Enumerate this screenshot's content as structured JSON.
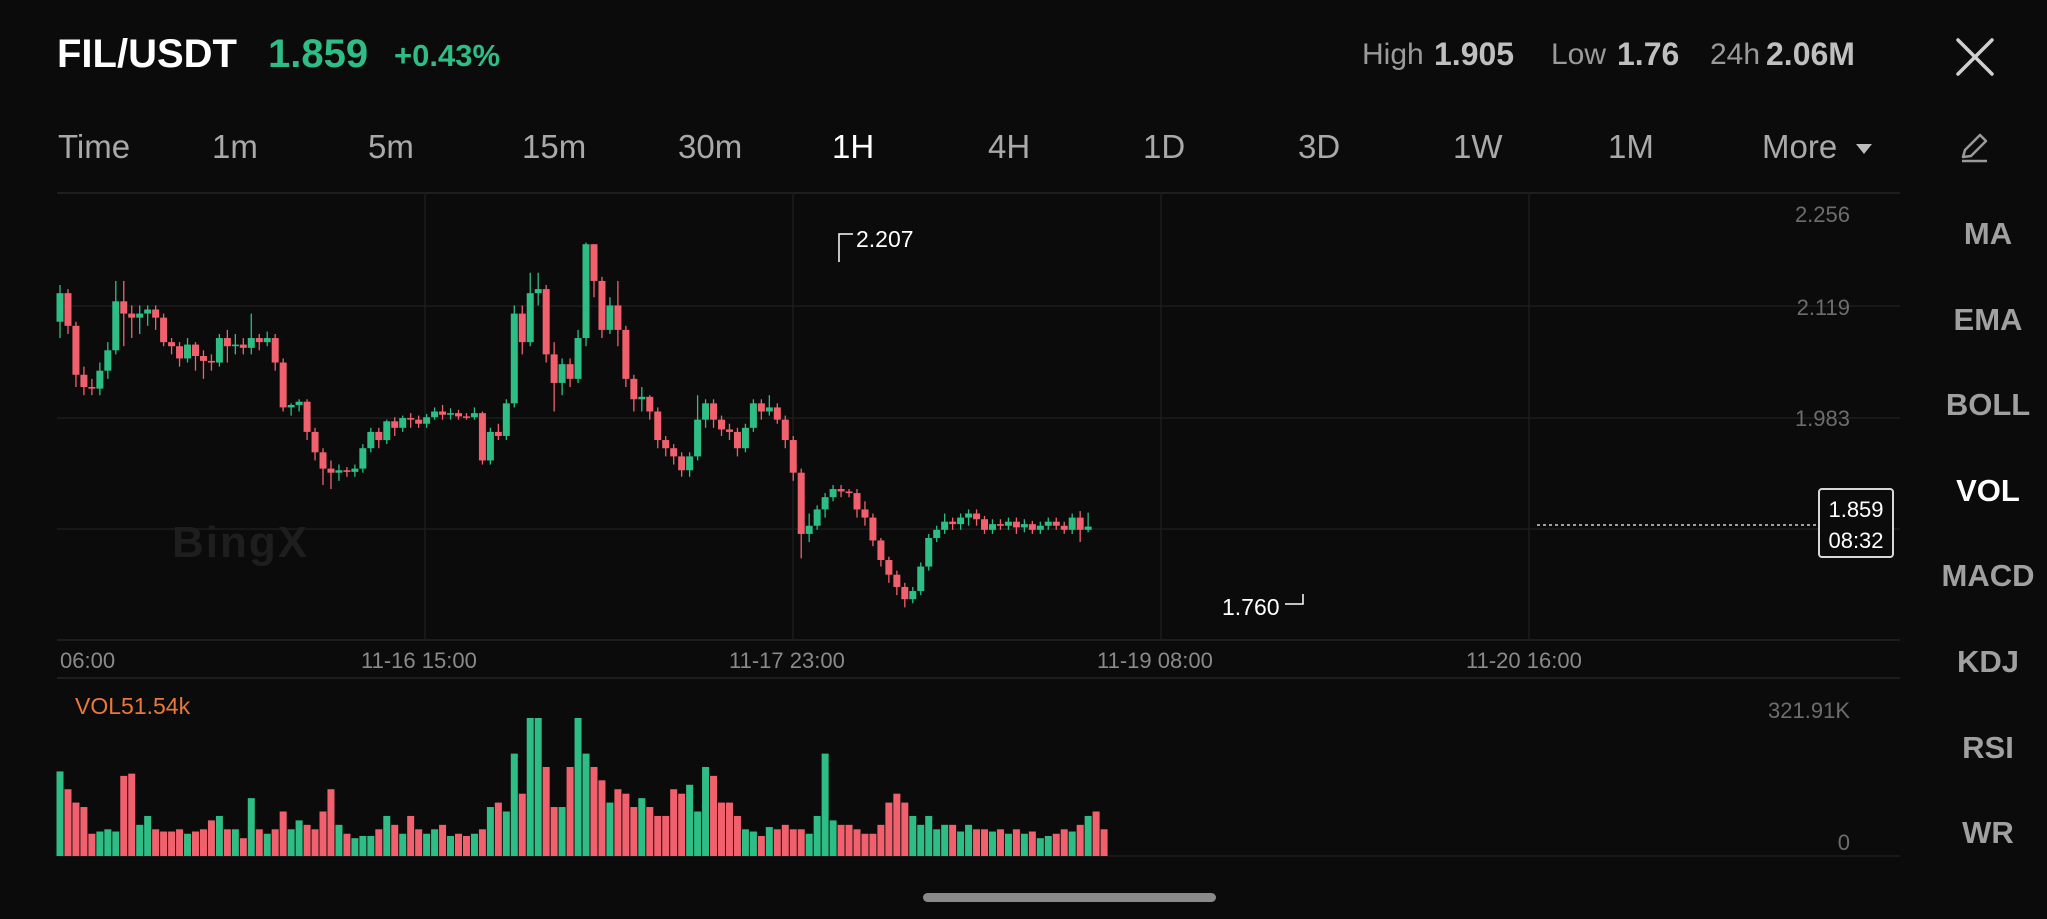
{
  "header": {
    "pair": "FIL/USDT",
    "price": "1.859",
    "change": "+0.43%",
    "high_label": "High",
    "high_value": "1.905",
    "low_label": "Low",
    "low_value": "1.76",
    "vol24_label": "24h",
    "vol24_value": "2.06M"
  },
  "tabs": [
    "Time",
    "1m",
    "5m",
    "15m",
    "30m",
    "1H",
    "4H",
    "1D",
    "3D",
    "1W",
    "1M",
    "More"
  ],
  "active_tab": "1H",
  "indicators": [
    "MA",
    "EMA",
    "BOLL",
    "VOL",
    "MACD",
    "KDJ",
    "RSI",
    "WR"
  ],
  "active_indicator": "VOL",
  "watermark": "BingX",
  "chart": {
    "y_ticks": [
      "2.256",
      "2.119",
      "1.983"
    ],
    "x_ticks": [
      "06:00",
      "11-16 15:00",
      "11-17 23:00",
      "11-19 08:00",
      "11-20 16:00"
    ],
    "high_marker": "2.207",
    "low_marker": "1.760",
    "current_price": "1.859",
    "countdown": "08:32",
    "vol_label": "VOL51.54k",
    "vol_max": "321.91K",
    "vol_min": "0"
  },
  "colors": {
    "up": "#2ebd85",
    "down": "#f0616d",
    "background": "#0b0b0b",
    "volume_label": "#e8793a"
  },
  "chart_data": {
    "type": "candlestick",
    "interval": "1H",
    "ylim": [
      1.72,
      2.28
    ],
    "volume_ylim": [
      0,
      321910
    ],
    "candles": [
      [
        2.11,
        2.145,
        2.09,
        2.155
      ],
      [
        2.145,
        2.105,
        2.095,
        2.15
      ],
      [
        2.105,
        2.045,
        2.03,
        2.11
      ],
      [
        2.045,
        2.03,
        2.02,
        2.055
      ],
      [
        2.03,
        2.028,
        2.02,
        2.04
      ],
      [
        2.028,
        2.05,
        2.02,
        2.06
      ],
      [
        2.05,
        2.075,
        2.04,
        2.085
      ],
      [
        2.075,
        2.135,
        2.07,
        2.16
      ],
      [
        2.135,
        2.12,
        2.08,
        2.16
      ],
      [
        2.12,
        2.115,
        2.09,
        2.13
      ],
      [
        2.115,
        2.12,
        2.095,
        2.13
      ],
      [
        2.12,
        2.125,
        2.105,
        2.13
      ],
      [
        2.125,
        2.115,
        2.1,
        2.13
      ],
      [
        2.115,
        2.085,
        2.08,
        2.12
      ],
      [
        2.085,
        2.08,
        2.07,
        2.09
      ],
      [
        2.08,
        2.065,
        2.055,
        2.085
      ],
      [
        2.065,
        2.082,
        2.06,
        2.09
      ],
      [
        2.082,
        2.068,
        2.05,
        2.085
      ],
      [
        2.068,
        2.062,
        2.04,
        2.075
      ],
      [
        2.062,
        2.06,
        2.05,
        2.07
      ],
      [
        2.06,
        2.09,
        2.055,
        2.095
      ],
      [
        2.09,
        2.08,
        2.06,
        2.1
      ],
      [
        2.08,
        2.082,
        2.07,
        2.095
      ],
      [
        2.082,
        2.078,
        2.07,
        2.09
      ],
      [
        2.078,
        2.09,
        2.07,
        2.12
      ],
      [
        2.09,
        2.085,
        2.075,
        2.095
      ],
      [
        2.085,
        2.09,
        2.08,
        2.098
      ],
      [
        2.09,
        2.06,
        2.05,
        2.095
      ],
      [
        2.06,
        2.005,
        2.0,
        2.065
      ],
      [
        2.005,
        2.008,
        1.995,
        2.01
      ],
      [
        2.008,
        2.012,
        2.0,
        2.015
      ],
      [
        2.012,
        1.975,
        1.965,
        2.015
      ],
      [
        1.975,
        1.95,
        1.94,
        1.98
      ],
      [
        1.95,
        1.93,
        1.91,
        1.955
      ],
      [
        1.93,
        1.925,
        1.905,
        1.94
      ],
      [
        1.925,
        1.928,
        1.915,
        1.935
      ],
      [
        1.928,
        1.926,
        1.92,
        1.932
      ],
      [
        1.926,
        1.93,
        1.92,
        1.935
      ],
      [
        1.93,
        1.955,
        1.925,
        1.96
      ],
      [
        1.955,
        1.975,
        1.95,
        1.98
      ],
      [
        1.975,
        1.965,
        1.955,
        1.98
      ],
      [
        1.965,
        1.988,
        1.96,
        1.99
      ],
      [
        1.988,
        1.98,
        1.97,
        1.993
      ],
      [
        1.98,
        1.992,
        1.975,
        1.995
      ],
      [
        1.992,
        1.99,
        1.98,
        1.998
      ],
      [
        1.99,
        1.985,
        1.98,
        1.995
      ],
      [
        1.985,
        1.993,
        1.98,
        1.997
      ],
      [
        1.993,
        2.0,
        1.99,
        2.005
      ],
      [
        2.0,
        1.996,
        1.99,
        2.008
      ],
      [
        1.996,
        1.998,
        1.99,
        2.004
      ],
      [
        1.998,
        1.994,
        1.99,
        2.002
      ],
      [
        1.994,
        1.993,
        1.99,
        1.998
      ],
      [
        1.993,
        1.998,
        1.99,
        2.005
      ],
      [
        1.998,
        1.94,
        1.935,
        2.0
      ],
      [
        1.94,
        1.975,
        1.935,
        1.98
      ],
      [
        1.975,
        1.97,
        1.965,
        1.985
      ],
      [
        1.97,
        2.01,
        1.965,
        2.015
      ],
      [
        2.01,
        2.12,
        2.005,
        2.13
      ],
      [
        2.12,
        2.085,
        2.07,
        2.13
      ],
      [
        2.085,
        2.145,
        2.08,
        2.17
      ],
      [
        2.145,
        2.15,
        2.13,
        2.17
      ],
      [
        2.15,
        2.07,
        2.06,
        2.155
      ],
      [
        2.07,
        2.035,
        2.0,
        2.085
      ],
      [
        2.035,
        2.058,
        2.02,
        2.065
      ],
      [
        2.058,
        2.04,
        2.03,
        2.065
      ],
      [
        2.04,
        2.09,
        2.035,
        2.1
      ],
      [
        2.09,
        2.205,
        2.08,
        2.207
      ],
      [
        2.205,
        2.16,
        2.14,
        2.205
      ],
      [
        2.16,
        2.1,
        2.09,
        2.165
      ],
      [
        2.1,
        2.13,
        2.095,
        2.14
      ],
      [
        2.13,
        2.1,
        2.08,
        2.16
      ],
      [
        2.1,
        2.04,
        2.03,
        2.105
      ],
      [
        2.04,
        2.015,
        2.0,
        2.045
      ],
      [
        2.015,
        2.018,
        2.0,
        2.03
      ],
      [
        2.018,
        2.0,
        1.99,
        2.02
      ],
      [
        2.0,
        1.965,
        1.955,
        2.005
      ],
      [
        1.965,
        1.955,
        1.945,
        1.97
      ],
      [
        1.955,
        1.945,
        1.935,
        1.96
      ],
      [
        1.945,
        1.928,
        1.92,
        1.95
      ],
      [
        1.928,
        1.945,
        1.92,
        1.95
      ],
      [
        1.945,
        1.99,
        1.94,
        2.02
      ],
      [
        1.99,
        2.01,
        1.98,
        2.015
      ],
      [
        2.01,
        1.99,
        1.98,
        2.015
      ],
      [
        1.99,
        1.978,
        1.97,
        1.995
      ],
      [
        1.978,
        1.975,
        1.965,
        1.985
      ],
      [
        1.975,
        1.955,
        1.945,
        1.98
      ],
      [
        1.955,
        1.98,
        1.95,
        1.985
      ],
      [
        1.98,
        2.01,
        1.975,
        2.015
      ],
      [
        2.01,
        2.0,
        1.99,
        2.015
      ],
      [
        2.0,
        2.005,
        1.995,
        2.02
      ],
      [
        2.005,
        1.99,
        1.985,
        2.01
      ],
      [
        1.99,
        1.965,
        1.955,
        1.995
      ],
      [
        1.965,
        1.925,
        1.915,
        1.97
      ],
      [
        1.925,
        1.85,
        1.82,
        1.93
      ],
      [
        1.85,
        1.86,
        1.84,
        1.875
      ],
      [
        1.86,
        1.88,
        1.855,
        1.885
      ],
      [
        1.88,
        1.895,
        1.87,
        1.9
      ],
      [
        1.895,
        1.905,
        1.89,
        1.91
      ],
      [
        1.905,
        1.902,
        1.895,
        1.91
      ],
      [
        1.902,
        1.9,
        1.895,
        1.905
      ],
      [
        1.9,
        1.88,
        1.87,
        1.905
      ],
      [
        1.88,
        1.87,
        1.86,
        1.89
      ],
      [
        1.87,
        1.842,
        1.835,
        1.875
      ],
      [
        1.842,
        1.818,
        1.81,
        1.845
      ],
      [
        1.818,
        1.8,
        1.79,
        1.822
      ],
      [
        1.8,
        1.785,
        1.775,
        1.805
      ],
      [
        1.785,
        1.77,
        1.76,
        1.79
      ],
      [
        1.77,
        1.78,
        1.765,
        1.785
      ],
      [
        1.78,
        1.81,
        1.775,
        1.815
      ],
      [
        1.81,
        1.845,
        1.805,
        1.85
      ],
      [
        1.845,
        1.855,
        1.84,
        1.86
      ],
      [
        1.855,
        1.865,
        1.85,
        1.875
      ],
      [
        1.865,
        1.862,
        1.855,
        1.87
      ],
      [
        1.862,
        1.87,
        1.855,
        1.875
      ],
      [
        1.87,
        1.875,
        1.86,
        1.88
      ],
      [
        1.875,
        1.868,
        1.86,
        1.88
      ],
      [
        1.868,
        1.855,
        1.85,
        1.872
      ],
      [
        1.855,
        1.862,
        1.85,
        1.868
      ],
      [
        1.862,
        1.86,
        1.855,
        1.868
      ],
      [
        1.86,
        1.865,
        1.855,
        1.87
      ],
      [
        1.865,
        1.858,
        1.85,
        1.87
      ],
      [
        1.858,
        1.862,
        1.852,
        1.868
      ],
      [
        1.862,
        1.855,
        1.85,
        1.866
      ],
      [
        1.855,
        1.86,
        1.85,
        1.865
      ],
      [
        1.86,
        1.865,
        1.855,
        1.87
      ],
      [
        1.865,
        1.86,
        1.855,
        1.87
      ],
      [
        1.86,
        1.855,
        1.85,
        1.865
      ],
      [
        1.855,
        1.87,
        1.85,
        1.875
      ],
      [
        1.87,
        1.855,
        1.84,
        1.878
      ],
      [
        1.855,
        1.859,
        1.852,
        1.876
      ]
    ],
    "volumes": [
      190,
      150,
      120,
      110,
      50,
      55,
      60,
      55,
      180,
      185,
      70,
      90,
      60,
      55,
      55,
      60,
      50,
      55,
      60,
      80,
      90,
      60,
      60,
      40,
      130,
      60,
      50,
      60,
      100,
      60,
      80,
      70,
      60,
      100,
      150,
      70,
      50,
      40,
      45,
      45,
      60,
      90,
      70,
      50,
      90,
      60,
      50,
      60,
      70,
      45,
      50,
      45,
      50,
      60,
      110,
      120,
      100,
      230,
      140,
      310,
      310,
      200,
      110,
      110,
      200,
      310,
      230,
      200,
      170,
      120,
      150,
      140,
      110,
      130,
      110,
      90,
      90,
      150,
      140,
      160,
      100,
      200,
      180,
      120,
      120,
      90,
      60,
      55,
      45,
      65,
      60,
      70,
      60,
      60,
      50,
      90,
      230,
      80,
      70,
      70,
      60,
      50,
      50,
      70,
      120,
      140,
      120,
      90,
      70,
      90,
      60,
      70,
      70,
      55,
      70,
      60,
      60,
      55,
      60,
      50,
      60,
      50,
      55,
      40,
      45,
      50,
      60,
      55,
      70,
      90,
      100,
      60
    ]
  }
}
